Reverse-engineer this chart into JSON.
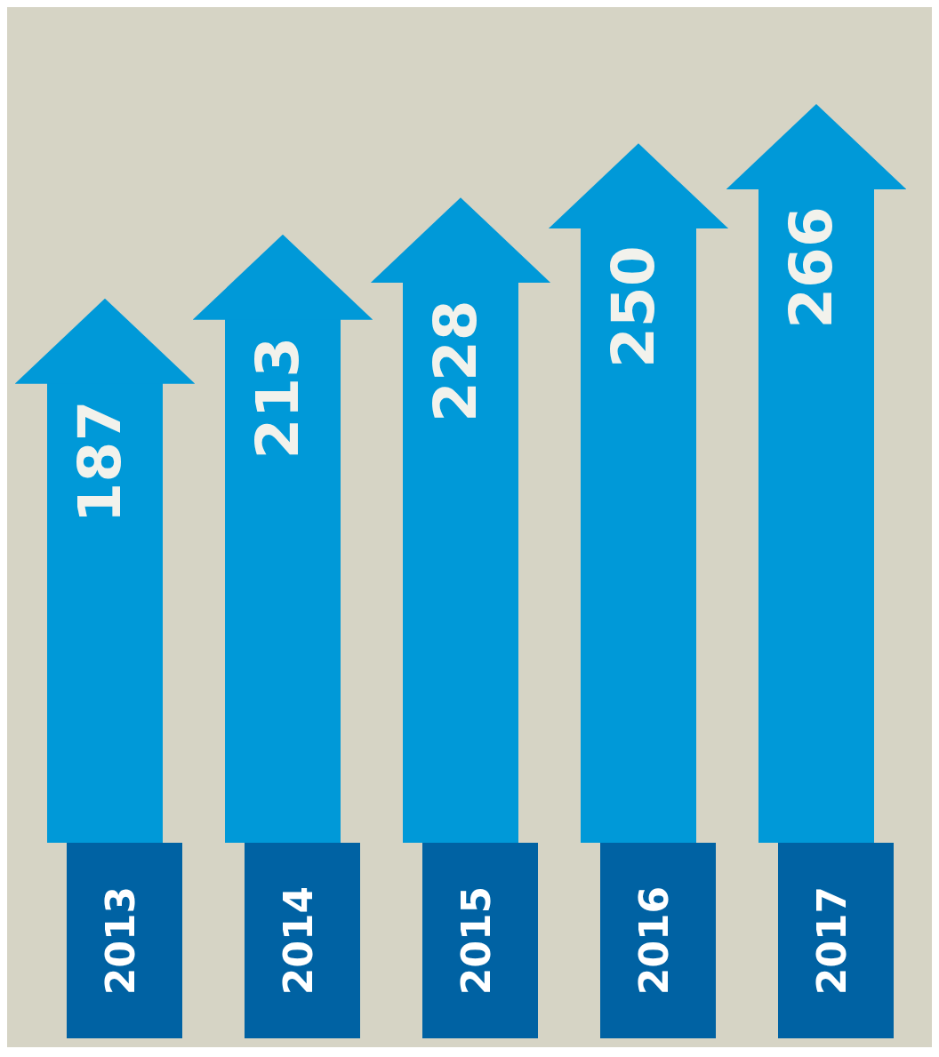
{
  "chart_data": {
    "type": "bar",
    "categories": [
      "2013",
      "2014",
      "2015",
      "2016",
      "2017"
    ],
    "values": [
      187,
      213,
      228,
      250,
      266
    ],
    "color": "#0099d8",
    "data_labels": true,
    "legend": false
  }
}
